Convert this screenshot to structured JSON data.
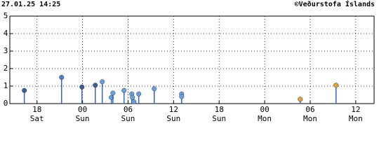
{
  "chart_data": {
    "type": "scatter",
    "title": "27.01.25 14:25",
    "credit": "©Veðurstofa Íslands",
    "x": [
      16.33,
      21.24,
      23.92,
      25.68,
      26.6,
      27.8,
      28.0,
      29.47,
      30.49,
      30.58,
      30.77,
      31.41,
      33.45,
      37.06,
      37.06,
      52.69,
      57.41
    ],
    "series": [
      {
        "values": [
          0.75,
          1.5,
          0.95,
          1.05,
          1.25,
          0.35,
          0.6,
          0.75,
          0.55,
          0.35,
          0.1,
          0.55,
          0.85,
          0.55,
          0.4,
          0.25,
          1.05
        ],
        "colors": [
          "#3d5f8f",
          "#4f7fbf",
          "#3d5f8f",
          "#3d5f8f",
          "#6a9fdb",
          "#6a9fdb",
          "#6a9fdb",
          "#6a9fdb",
          "#6a9fdb",
          "#6a9fdb",
          "#6a9fdb",
          "#6a9fdb",
          "#6a9fdb",
          "#6a9fdb",
          "#6a9fdb",
          "#e0a23a",
          "#e6a030"
        ],
        "stem_color": "#3366cc"
      }
    ],
    "xlim": [
      14.42,
      62.42
    ],
    "xticks": [
      {
        "value": 18,
        "label": "18"
      },
      {
        "value": 24,
        "label": "00"
      },
      {
        "value": 30,
        "label": "06"
      },
      {
        "value": 36,
        "label": "12"
      },
      {
        "value": 42,
        "label": "18"
      },
      {
        "value": 48,
        "label": "00"
      },
      {
        "value": 54,
        "label": "06"
      },
      {
        "value": 60,
        "label": "12"
      }
    ],
    "xtick_days": [
      "Sat",
      "Sun",
      "Sun",
      "Sun",
      "Sun",
      "Mon",
      "Mon",
      "Mon"
    ],
    "ylim": [
      0,
      5
    ],
    "yticks": [
      0,
      1,
      2,
      3,
      4,
      5
    ],
    "grid": true
  }
}
